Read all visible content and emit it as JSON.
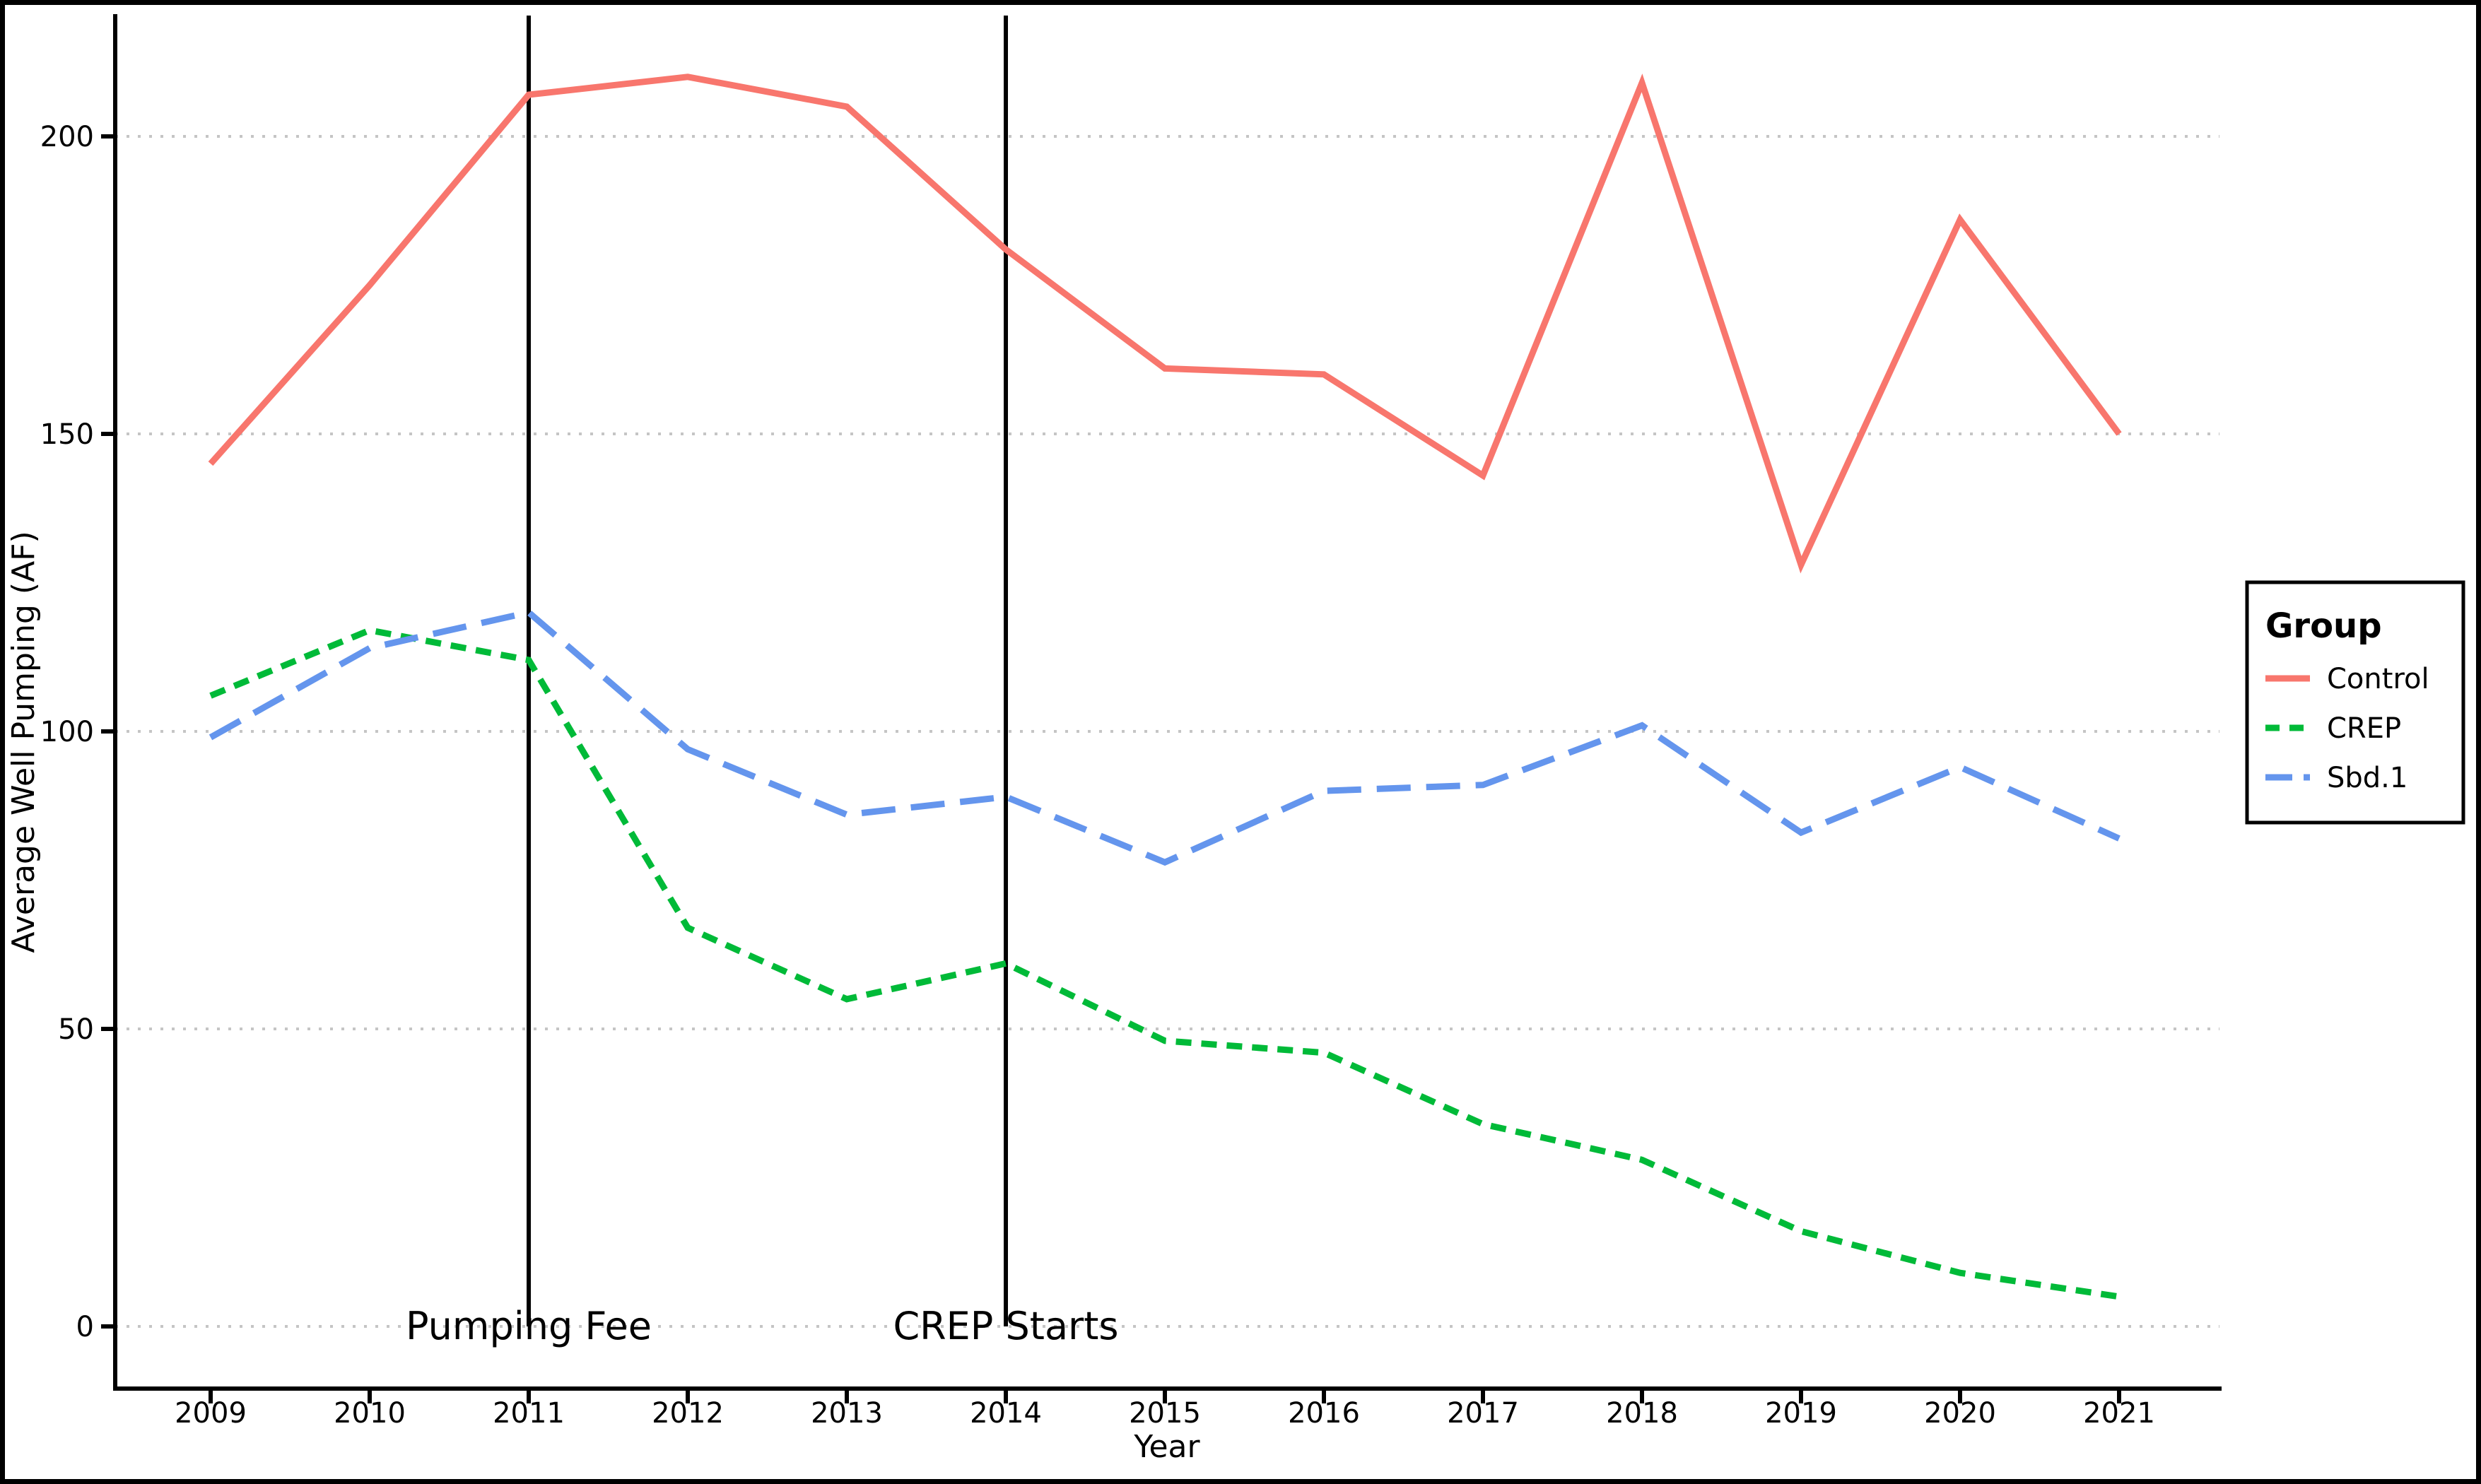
{
  "chart_data": {
    "type": "line",
    "title": "",
    "xlabel": "Year",
    "ylabel": "Average Well Pumping (AF)",
    "categories": [
      2009,
      2010,
      2011,
      2012,
      2013,
      2014,
      2015,
      2016,
      2017,
      2018,
      2019,
      2020,
      2021
    ],
    "xlim": [
      2008.4,
      2021.6
    ],
    "ylim": [
      -10.5,
      220.5
    ],
    "yticks": [
      0,
      50,
      100,
      150,
      200
    ],
    "grid": "horizontal-dotted",
    "grid_color": "#C5C5C5",
    "axis_color": "#000000",
    "background_color": "#FFFFFF",
    "series": [
      {
        "name": "Control",
        "color": "#F8766D",
        "linetype": "solid",
        "values": [
          145,
          175,
          207,
          210,
          205,
          181,
          161,
          160,
          143,
          209,
          128,
          186,
          150
        ]
      },
      {
        "name": "CREP",
        "color": "#00BA38",
        "linetype": "dashed",
        "values": [
          106,
          117,
          112,
          67,
          55,
          61,
          48,
          46,
          34,
          28,
          16,
          9,
          5
        ]
      },
      {
        "name": "Sbd.1",
        "color": "#6495ED",
        "linetype": "longdash",
        "values": [
          99,
          114,
          120,
          97,
          86,
          89,
          78,
          90,
          91,
          101,
          83,
          94,
          82
        ]
      }
    ],
    "annotations": [
      {
        "label": "Pumping Fee",
        "x": 2011
      },
      {
        "label": "CREP Starts",
        "x": 2014
      }
    ],
    "legend": {
      "title": "Group",
      "position": "right",
      "entries": [
        "Control",
        "CREP",
        "Sbd.1"
      ]
    }
  }
}
